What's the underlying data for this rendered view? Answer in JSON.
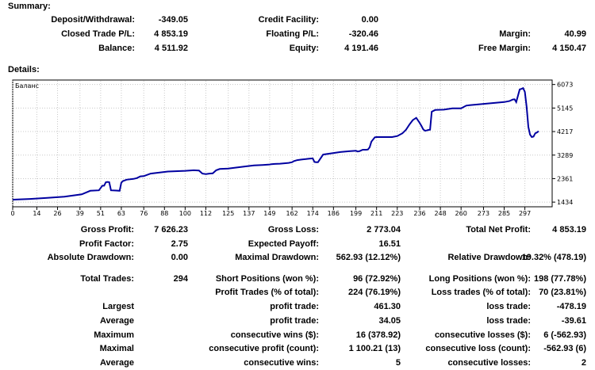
{
  "summary": {
    "title": "Summary:",
    "rows": [
      [
        {
          "label": "Deposit/Withdrawal:",
          "value": "-349.05"
        },
        {
          "label": "Credit Facility:",
          "value": "0.00"
        },
        {
          "label": "",
          "value": ""
        }
      ],
      [
        {
          "label": "Closed Trade P/L:",
          "value": "4 853.19"
        },
        {
          "label": "Floating P/L:",
          "value": "-320.46"
        },
        {
          "label": "Margin:",
          "value": "40.99"
        }
      ],
      [
        {
          "label": "Balance:",
          "value": "4 511.92"
        },
        {
          "label": "Equity:",
          "value": "4 191.46"
        },
        {
          "label": "Free Margin:",
          "value": "4 150.47"
        }
      ]
    ]
  },
  "details": {
    "title": "Details:",
    "rows": [
      [
        {
          "label": "Gross Profit:",
          "value": "7 626.23"
        },
        {
          "label": "Gross Loss:",
          "value": "2 773.04"
        },
        {
          "label": "Total Net Profit:",
          "value": "4 853.19"
        }
      ],
      [
        {
          "label": "Profit Factor:",
          "value": "2.75"
        },
        {
          "label": "Expected Payoff:",
          "value": "16.51"
        },
        {
          "label": "",
          "value": ""
        }
      ],
      [
        {
          "label": "Absolute Drawdown:",
          "value": "0.00"
        },
        {
          "label": "Maximal Drawdown:",
          "value": "562.93 (12.12%)"
        },
        {
          "label": "Relative Drawdown:",
          "value": "19.32% (478.19)"
        }
      ],
      [
        {
          "label": "Total Trades:",
          "value": "294"
        },
        {
          "label": "Short Positions (won %):",
          "value": "96 (72.92%)"
        },
        {
          "label": "Long Positions (won %):",
          "value": "198 (77.78%)"
        }
      ],
      [
        {
          "label": "",
          "value": ""
        },
        {
          "label": "Profit Trades (% of total):",
          "value": "224 (76.19%)"
        },
        {
          "label": "Loss trades (% of total):",
          "value": "70 (23.81%)"
        }
      ],
      [
        {
          "label": "Largest",
          "value": ""
        },
        {
          "label": "profit trade:",
          "value": "461.30"
        },
        {
          "label": "loss trade:",
          "value": "-478.19"
        }
      ],
      [
        {
          "label": "Average",
          "value": ""
        },
        {
          "label": "profit trade:",
          "value": "34.05"
        },
        {
          "label": "loss trade:",
          "value": "-39.61"
        }
      ],
      [
        {
          "label": "Maximum",
          "value": ""
        },
        {
          "label": "consecutive wins ($):",
          "value": "16 (378.92)"
        },
        {
          "label": "consecutive losses ($):",
          "value": "6 (-562.93)"
        }
      ],
      [
        {
          "label": "Maximal",
          "value": ""
        },
        {
          "label": "consecutive profit (count):",
          "value": "1 100.21 (13)"
        },
        {
          "label": "consecutive loss (count):",
          "value": "-562.93 (6)"
        }
      ],
      [
        {
          "label": "Average",
          "value": ""
        },
        {
          "label": "consecutive wins:",
          "value": "5"
        },
        {
          "label": "consecutive losses:",
          "value": "2"
        }
      ]
    ]
  },
  "chart_data": {
    "type": "line",
    "title": "Баланс",
    "xlabel": "",
    "ylabel": "",
    "x_ticks": [
      0,
      14,
      26,
      39,
      51,
      63,
      76,
      88,
      100,
      112,
      125,
      137,
      149,
      162,
      174,
      186,
      199,
      211,
      223,
      236,
      248,
      260,
      273,
      285,
      297
    ],
    "y_ticks": [
      1434,
      2361,
      3289,
      4217,
      5145,
      6073
    ],
    "xlim": [
      0,
      305
    ],
    "ylim": [
      1250,
      6250
    ],
    "series": [
      {
        "name": "Balance",
        "color": "#0000a0",
        "x": [
          0,
          10,
          20,
          30,
          40,
          45,
          50,
          52,
          53,
          54,
          55,
          56,
          57,
          60,
          62,
          63,
          64,
          65,
          66,
          70,
          72,
          74,
          76,
          80,
          90,
          100,
          105,
          108,
          110,
          112,
          114,
          116,
          118,
          120,
          125,
          130,
          137,
          140,
          145,
          149,
          150,
          152,
          155,
          160,
          162,
          163,
          165,
          167,
          170,
          172,
          174,
          175,
          176,
          177,
          180,
          190,
          195,
          199,
          200,
          201,
          203,
          205,
          206,
          207,
          208,
          210,
          211,
          220,
          223,
          226,
          228,
          230,
          232,
          234,
          236,
          237,
          238,
          239,
          240,
          241,
          242,
          243,
          245,
          250,
          255,
          260,
          263,
          265,
          270,
          280,
          285,
          288,
          290,
          291,
          292,
          294,
          295,
          296,
          297,
          298,
          299,
          300,
          301,
          302,
          303,
          304,
          305
        ],
        "y": [
          1530,
          1560,
          1600,
          1650,
          1740,
          1880,
          1900,
          2080,
          2080,
          2220,
          2230,
          2220,
          1900,
          1890,
          1880,
          2200,
          2270,
          2290,
          2320,
          2350,
          2380,
          2450,
          2460,
          2560,
          2640,
          2670,
          2690,
          2680,
          2560,
          2540,
          2560,
          2570,
          2690,
          2740,
          2760,
          2800,
          2860,
          2880,
          2900,
          2920,
          2930,
          2940,
          2950,
          2980,
          3010,
          3050,
          3090,
          3110,
          3130,
          3150,
          3160,
          3020,
          3010,
          3010,
          3310,
          3410,
          3440,
          3460,
          3430,
          3440,
          3500,
          3500,
          3510,
          3600,
          3820,
          3990,
          4000,
          4000,
          4040,
          4150,
          4280,
          4490,
          4670,
          4760,
          4560,
          4440,
          4310,
          4250,
          4260,
          4280,
          4290,
          5000,
          5070,
          5080,
          5130,
          5130,
          5240,
          5260,
          5290,
          5350,
          5380,
          5420,
          5480,
          5490,
          5380,
          5880,
          5900,
          5930,
          5780,
          5200,
          4400,
          4100,
          4000,
          4020,
          4150,
          4180,
          4230
        ]
      }
    ]
  }
}
